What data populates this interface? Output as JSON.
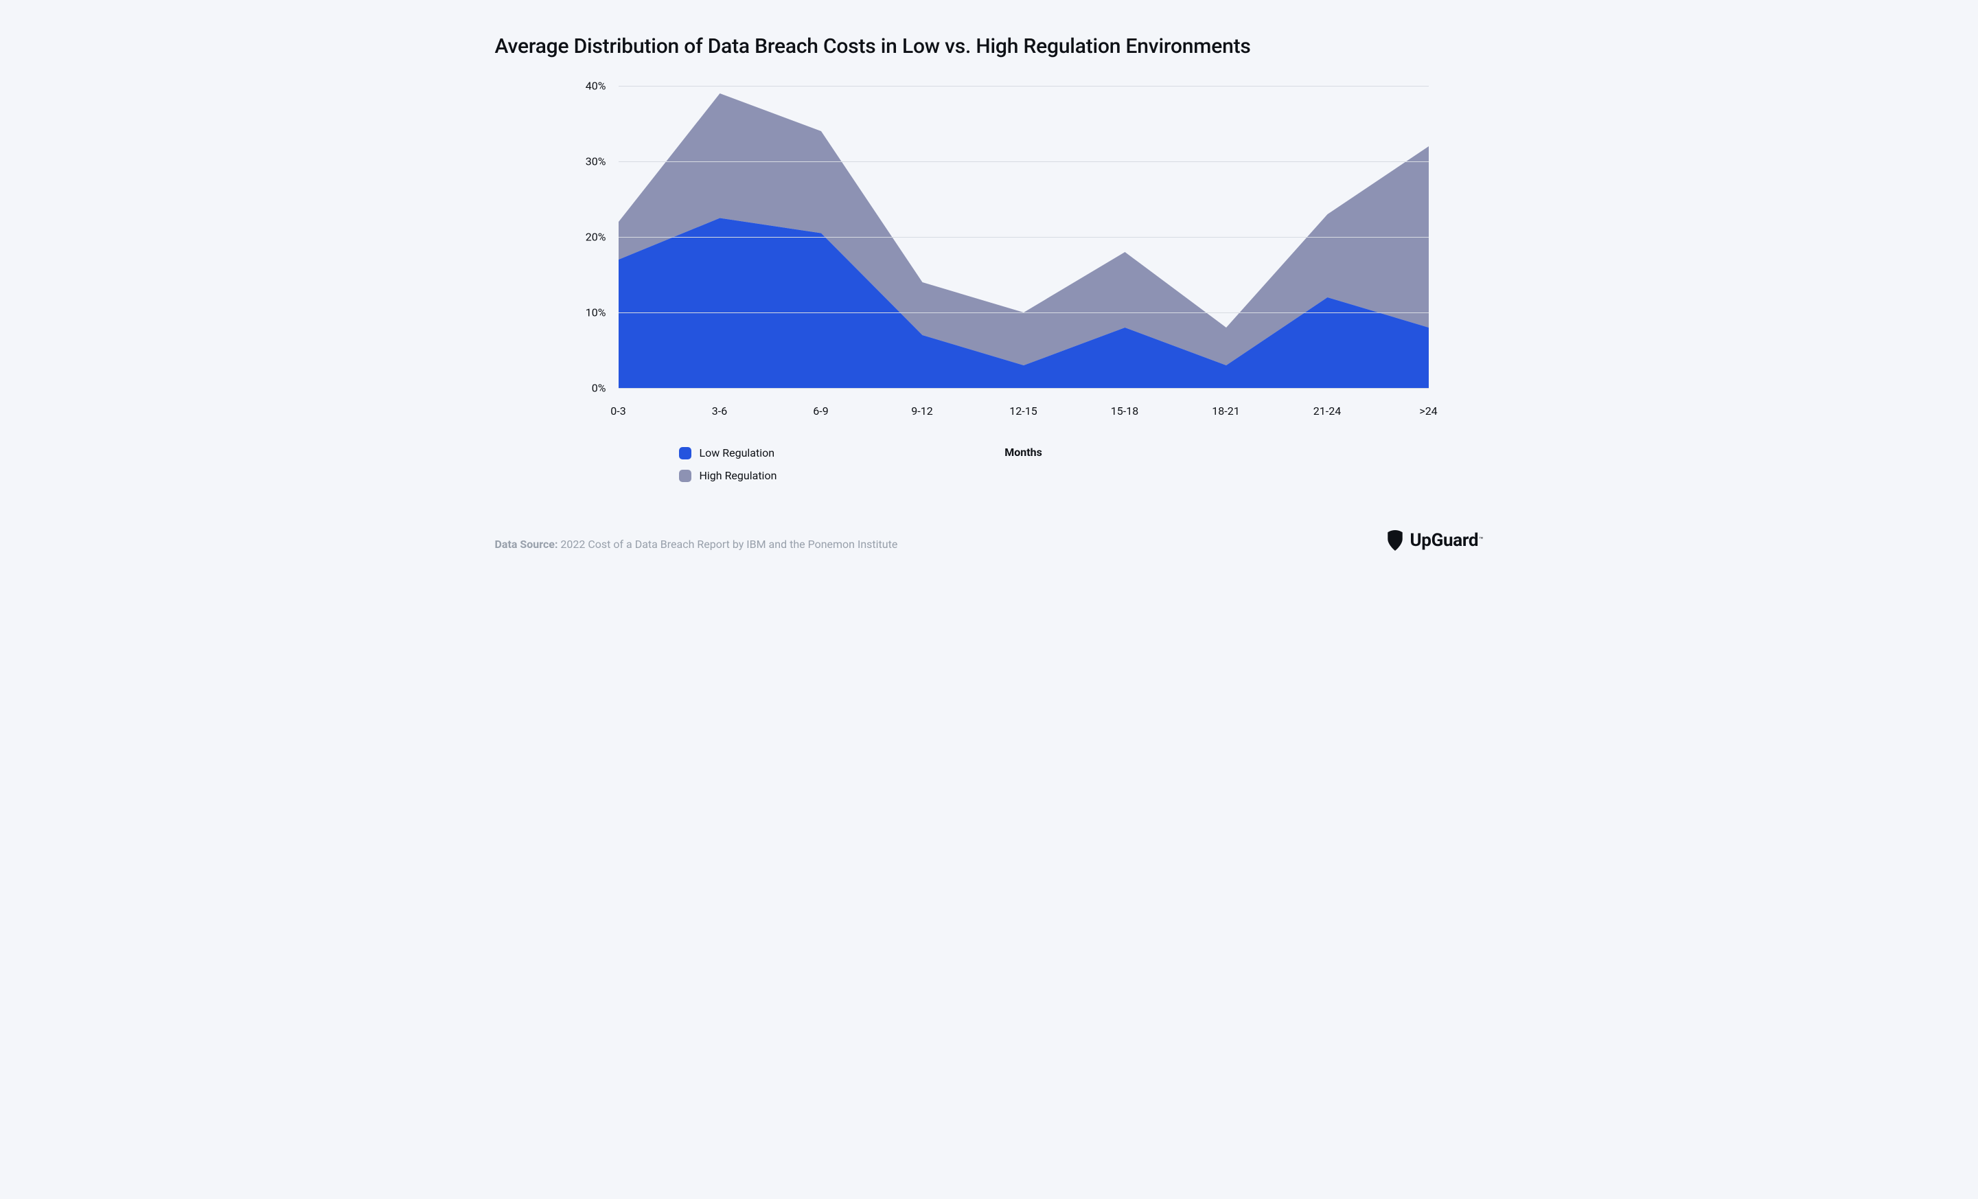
{
  "title": "Average Distribution of Data Breach Costs in Low vs. High Regulation Environments",
  "chart": {
    "type": "area",
    "stacked": true,
    "background_color": "#f4f6fa",
    "grid_color": "#d7dbe2",
    "text_color": "#0e1116",
    "title_fontsize": 30,
    "label_fontsize": 16,
    "x_categories": [
      "0-3",
      "3-6",
      "6-9",
      "9-12",
      "12-15",
      "15-18",
      "18-21",
      "21-24",
      ">24"
    ],
    "x_title": "Months",
    "y_ticks": [
      0,
      10,
      20,
      30,
      40
    ],
    "y_tick_labels": [
      "0%",
      "10%",
      "20%",
      "30%",
      "40%"
    ],
    "ylim": [
      0,
      40
    ],
    "series": [
      {
        "name": "Low Regulation",
        "color": "#2454de",
        "values": [
          17,
          22.5,
          20.5,
          7,
          3,
          8,
          3,
          12,
          8
        ]
      },
      {
        "name": "High Regulation",
        "color": "#8d92b3",
        "values": [
          5,
          16.5,
          13.5,
          7,
          7,
          10,
          5,
          11,
          24
        ]
      }
    ],
    "legend_position": "bottom-left"
  },
  "source": {
    "label": "Data Source:",
    "text": "2022 Cost of a Data Breach Report by IBM and the Ponemon Institute",
    "text_color": "#98a0ab"
  },
  "brand": {
    "name": "UpGuard",
    "tm": "™",
    "icon_color": "#0e1116"
  }
}
